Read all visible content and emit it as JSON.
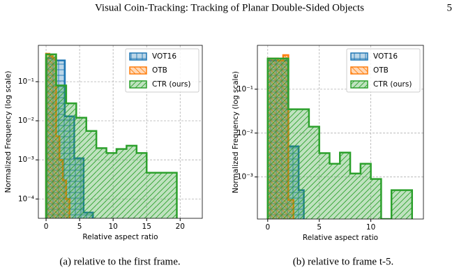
{
  "header": {
    "title": "Visual Coin-Tracking: Tracking of Planar Double-Sided Objects",
    "page": "5"
  },
  "chart_data": [
    {
      "type": "histogram",
      "xlabel": "Relative aspect ratio",
      "ylabel": "Normalized Frequency (log scale)",
      "xlim": [
        -1.15,
        23.3
      ],
      "xticks": [
        0,
        5,
        10,
        15,
        20
      ],
      "ylim": [
        3.2e-05,
        0.85
      ],
      "log_y": true,
      "grid": true,
      "legend": "upper right",
      "yticks": [
        {
          "value": 0.0001,
          "label": "10⁻⁴"
        },
        {
          "value": 0.001,
          "label": "10⁻³"
        },
        {
          "value": 0.01,
          "label": "10⁻²"
        },
        {
          "value": 0.1,
          "label": "10⁻¹"
        }
      ],
      "series": [
        {
          "name": "VOT16",
          "color": "#1f77b4",
          "hatch": "+",
          "bins": [
            0,
            1.4,
            2.8,
            4.2,
            5.6,
            7
          ],
          "values": [
            0.4,
            0.35,
            0.013,
            0.0011,
            4.5e-05
          ]
        },
        {
          "name": "OTB",
          "color": "#ff7f0e",
          "hatch": "\\",
          "bins": [
            0,
            0.5,
            1,
            1.5,
            2,
            2.5,
            3,
            3.5
          ],
          "values": [
            0.52,
            0.45,
            0.4,
            0.004,
            0.001,
            0.0003,
            0.0001
          ]
        },
        {
          "name": "CTR (ours)",
          "color": "#2ca02c",
          "hatch": "/",
          "bins": [
            0,
            1.5,
            3,
            4.5,
            6,
            7.5,
            9,
            10.5,
            12,
            13.5,
            15,
            16.5,
            18,
            19.5
          ],
          "values": [
            0.5,
            0.08,
            0.028,
            0.012,
            0.0055,
            0.002,
            0.0015,
            0.0019,
            0.0023,
            0.0015,
            0.00047,
            0.00047,
            0.00047
          ]
        }
      ]
    },
    {
      "type": "histogram",
      "xlabel": "Relative aspect ratio",
      "ylabel": "Normalized Frequency (log scale)",
      "xlim": [
        -1,
        15.1
      ],
      "xticks": [
        0,
        5,
        10
      ],
      "ylim": [
        0.00011,
        1.0
      ],
      "log_y": true,
      "grid": true,
      "legend": "upper right",
      "yticks": [
        {
          "value": 0.001,
          "label": "10⁻³"
        },
        {
          "value": 0.01,
          "label": "10⁻²"
        },
        {
          "value": 0.1,
          "label": "10⁻¹"
        }
      ],
      "series": [
        {
          "name": "VOT16",
          "color": "#1f77b4",
          "hatch": "+",
          "bins": [
            0,
            0.5,
            1,
            1.5,
            2,
            2.5,
            3,
            3.5
          ],
          "values": [
            0.45,
            0.45,
            0.45,
            0.45,
            0.005,
            0.005,
            0.0005
          ]
        },
        {
          "name": "OTB",
          "color": "#ff7f0e",
          "hatch": "\\",
          "bins": [
            0,
            0.5,
            1,
            1.5,
            2,
            2.5
          ],
          "values": [
            0.5,
            0.5,
            0.45,
            0.6,
            0.0003
          ]
        },
        {
          "name": "CTR (ours)",
          "color": "#2ca02c",
          "hatch": "/",
          "bins": [
            0,
            1,
            2,
            3,
            4,
            5,
            6,
            7,
            8,
            9,
            10,
            11,
            12,
            13,
            14
          ],
          "values": [
            0.5,
            0.5,
            0.035,
            0.035,
            0.014,
            0.0035,
            0.002,
            0.0036,
            0.0012,
            0.002,
            0.0009,
            0,
            0.0005,
            0.0005
          ]
        }
      ]
    }
  ],
  "captions": [
    "(a) relative to the first frame.",
    "(b) relative to frame t-5."
  ]
}
